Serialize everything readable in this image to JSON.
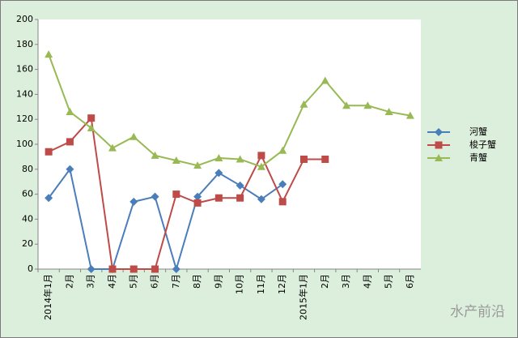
{
  "chart_data": {
    "type": "line",
    "categories": [
      "2014年1月",
      "2月",
      "3月",
      "4月",
      "5月",
      "6月",
      "7月",
      "8月",
      "9月",
      "10月",
      "11月",
      "12月",
      "2015年1月",
      "2月",
      "3月",
      "4月",
      "5月",
      "6月"
    ],
    "series": [
      {
        "name": "河蟹",
        "color": "#4a7ebb",
        "marker": "diamond",
        "values": [
          57,
          80,
          0,
          0,
          54,
          58,
          0,
          58,
          77,
          67,
          56,
          68,
          null,
          null,
          null,
          null,
          null,
          null
        ]
      },
      {
        "name": "梭子蟹",
        "color": "#be4b48",
        "marker": "square",
        "values": [
          94,
          102,
          121,
          0,
          0,
          0,
          60,
          53,
          57,
          57,
          91,
          54,
          88,
          88,
          null,
          null,
          null,
          null
        ]
      },
      {
        "name": "青蟹",
        "color": "#98b954",
        "marker": "triangle",
        "values": [
          172,
          126,
          113,
          97,
          106,
          91,
          87,
          83,
          89,
          88,
          82,
          95,
          132,
          151,
          131,
          131,
          126,
          123
        ]
      }
    ],
    "ylim": [
      0,
      200
    ],
    "yticks": [
      0,
      20,
      40,
      60,
      80,
      100,
      120,
      140,
      160,
      180,
      200
    ],
    "grid": false,
    "legend": "right",
    "watermark": "水产前沿"
  }
}
